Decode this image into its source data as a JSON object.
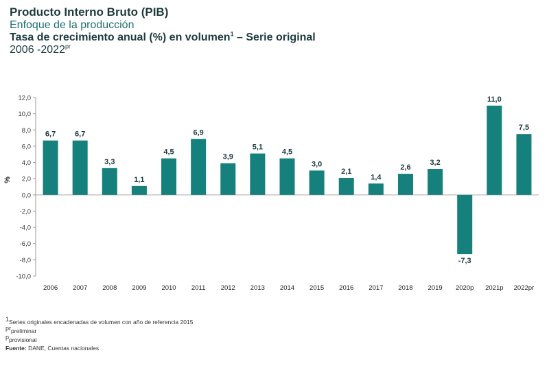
{
  "header": {
    "title": "Producto Interno Bruto (PIB)",
    "subtitle": "Enfoque de la producción",
    "metric_text": "Tasa de crecimiento anual (%) en volumen",
    "metric_sup": "1",
    "metric_suffix": " – Serie original",
    "period_text": "2006 -2022",
    "period_sup": "pr"
  },
  "chart_data": {
    "type": "bar",
    "ylabel": "%",
    "ylim": [
      -10,
      12
    ],
    "yticks": [
      "12,0",
      "10,0",
      "8,0",
      "6,0",
      "4,0",
      "2,0",
      "0,0",
      "-2,0",
      "-4,0",
      "-6,0",
      "-8,0",
      "-10,0"
    ],
    "categories": [
      "2006",
      "2007",
      "2008",
      "2009",
      "2010",
      "2011",
      "2012",
      "2013",
      "2014",
      "2015",
      "2016",
      "2017",
      "2018",
      "2019",
      "2020p",
      "2021p",
      "2022pr"
    ],
    "values": [
      6.7,
      6.7,
      3.3,
      1.1,
      4.5,
      6.9,
      3.9,
      5.1,
      4.5,
      3.0,
      2.1,
      1.4,
      2.6,
      3.2,
      -7.3,
      11.0,
      7.5
    ],
    "value_labels": [
      "6,7",
      "6,7",
      "3,3",
      "1,1",
      "4,5",
      "6,9",
      "3,9",
      "5,1",
      "4,5",
      "3,0",
      "2,1",
      "1,4",
      "2,6",
      "3,2",
      "-7,3",
      "11,0",
      "7,5"
    ],
    "bar_color": "#15807c",
    "grid": false,
    "legend": "none"
  },
  "footnotes": {
    "note1_sup": "1",
    "note1_text": "Series originales encadenadas de volumen con año de referencia 2015",
    "note_pr_sup": "pr",
    "note_pr_text": "preliminar",
    "note_p_sup": "p",
    "note_p_text": "provisional",
    "source_label": "Fuente:",
    "source_text": " DANE, Cuentas nacionales"
  }
}
